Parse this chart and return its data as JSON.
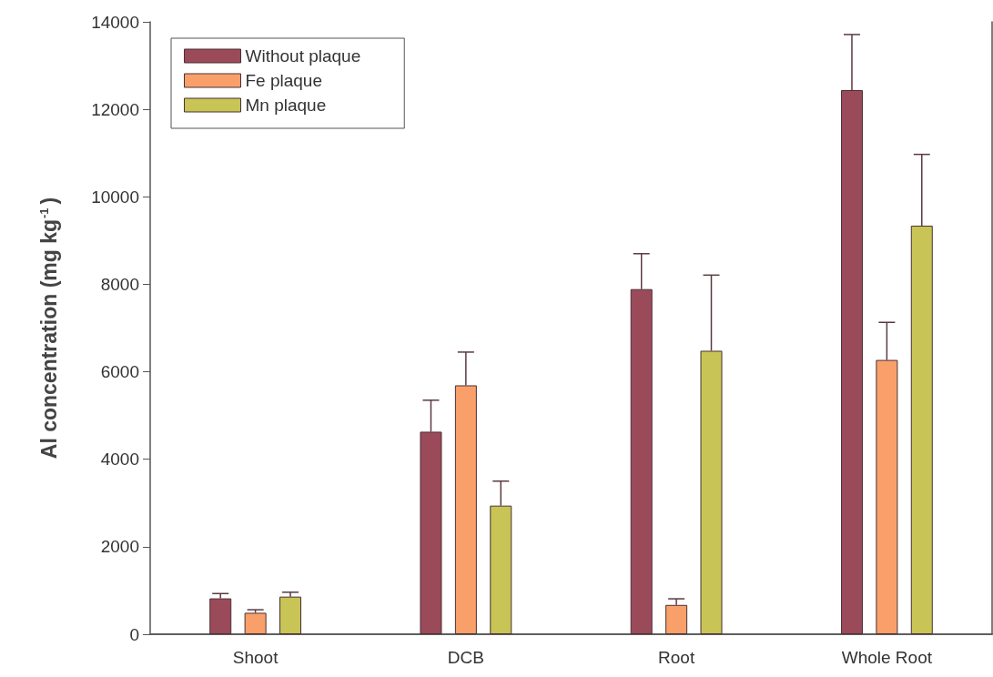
{
  "chart_data": {
    "type": "bar",
    "ylabel": "Al concentration (mg kg$^{-1}$)",
    "categories": [
      "Shoot",
      "DCB",
      "Root",
      "Whole Root"
    ],
    "series": [
      {
        "name": "Without plaque",
        "color": "#9b4a5a",
        "values": [
          820,
          4630,
          7890,
          12440
        ],
        "errors": [
          [
            820,
            930
          ],
          [
            4630,
            5350
          ],
          [
            7890,
            8700
          ],
          [
            12440,
            13710
          ]
        ]
      },
      {
        "name": "Fe plaque",
        "color": "#f9a06a",
        "values": [
          490,
          5690,
          670,
          6270
        ],
        "errors": [
          [
            490,
            560
          ],
          [
            5690,
            6450
          ],
          [
            670,
            810
          ],
          [
            6270,
            7130
          ]
        ]
      },
      {
        "name": "Mn plaque",
        "color": "#c8c455",
        "values": [
          860,
          2940,
          6480,
          9340
        ],
        "errors": [
          [
            860,
            960
          ],
          [
            2940,
            3500
          ],
          [
            6480,
            8210
          ],
          [
            9340,
            10970
          ]
        ]
      }
    ],
    "ylim": [
      0,
      14000
    ],
    "yticks": [
      0,
      2000,
      4000,
      6000,
      8000,
      10000,
      12000,
      14000
    ],
    "grid": false,
    "legend": "top left"
  }
}
